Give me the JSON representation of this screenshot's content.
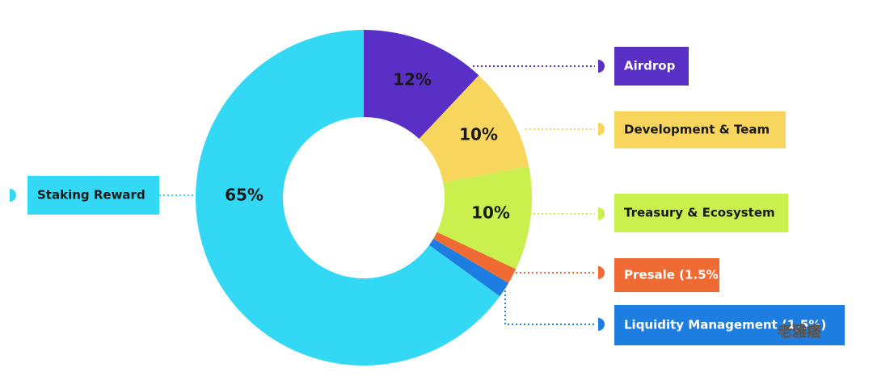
{
  "chart_data": {
    "type": "donut",
    "categories": [
      "Airdrop",
      "Development & Team",
      "Treasury & Ecosystem",
      "Presale (1.5%)",
      "Liquidity Management (1.5%)",
      "Staking Reward"
    ],
    "values": [
      12,
      10,
      10,
      1.5,
      1.5,
      65
    ],
    "value_labels": [
      "12%",
      "10%",
      "10%",
      null,
      null,
      "65%"
    ],
    "colors": [
      "#5a2fc6",
      "#f8d55c",
      "#c9f04c",
      "#f06a34",
      "#1e7de0",
      "#33d8f5"
    ],
    "watermark": "老雅痞"
  }
}
